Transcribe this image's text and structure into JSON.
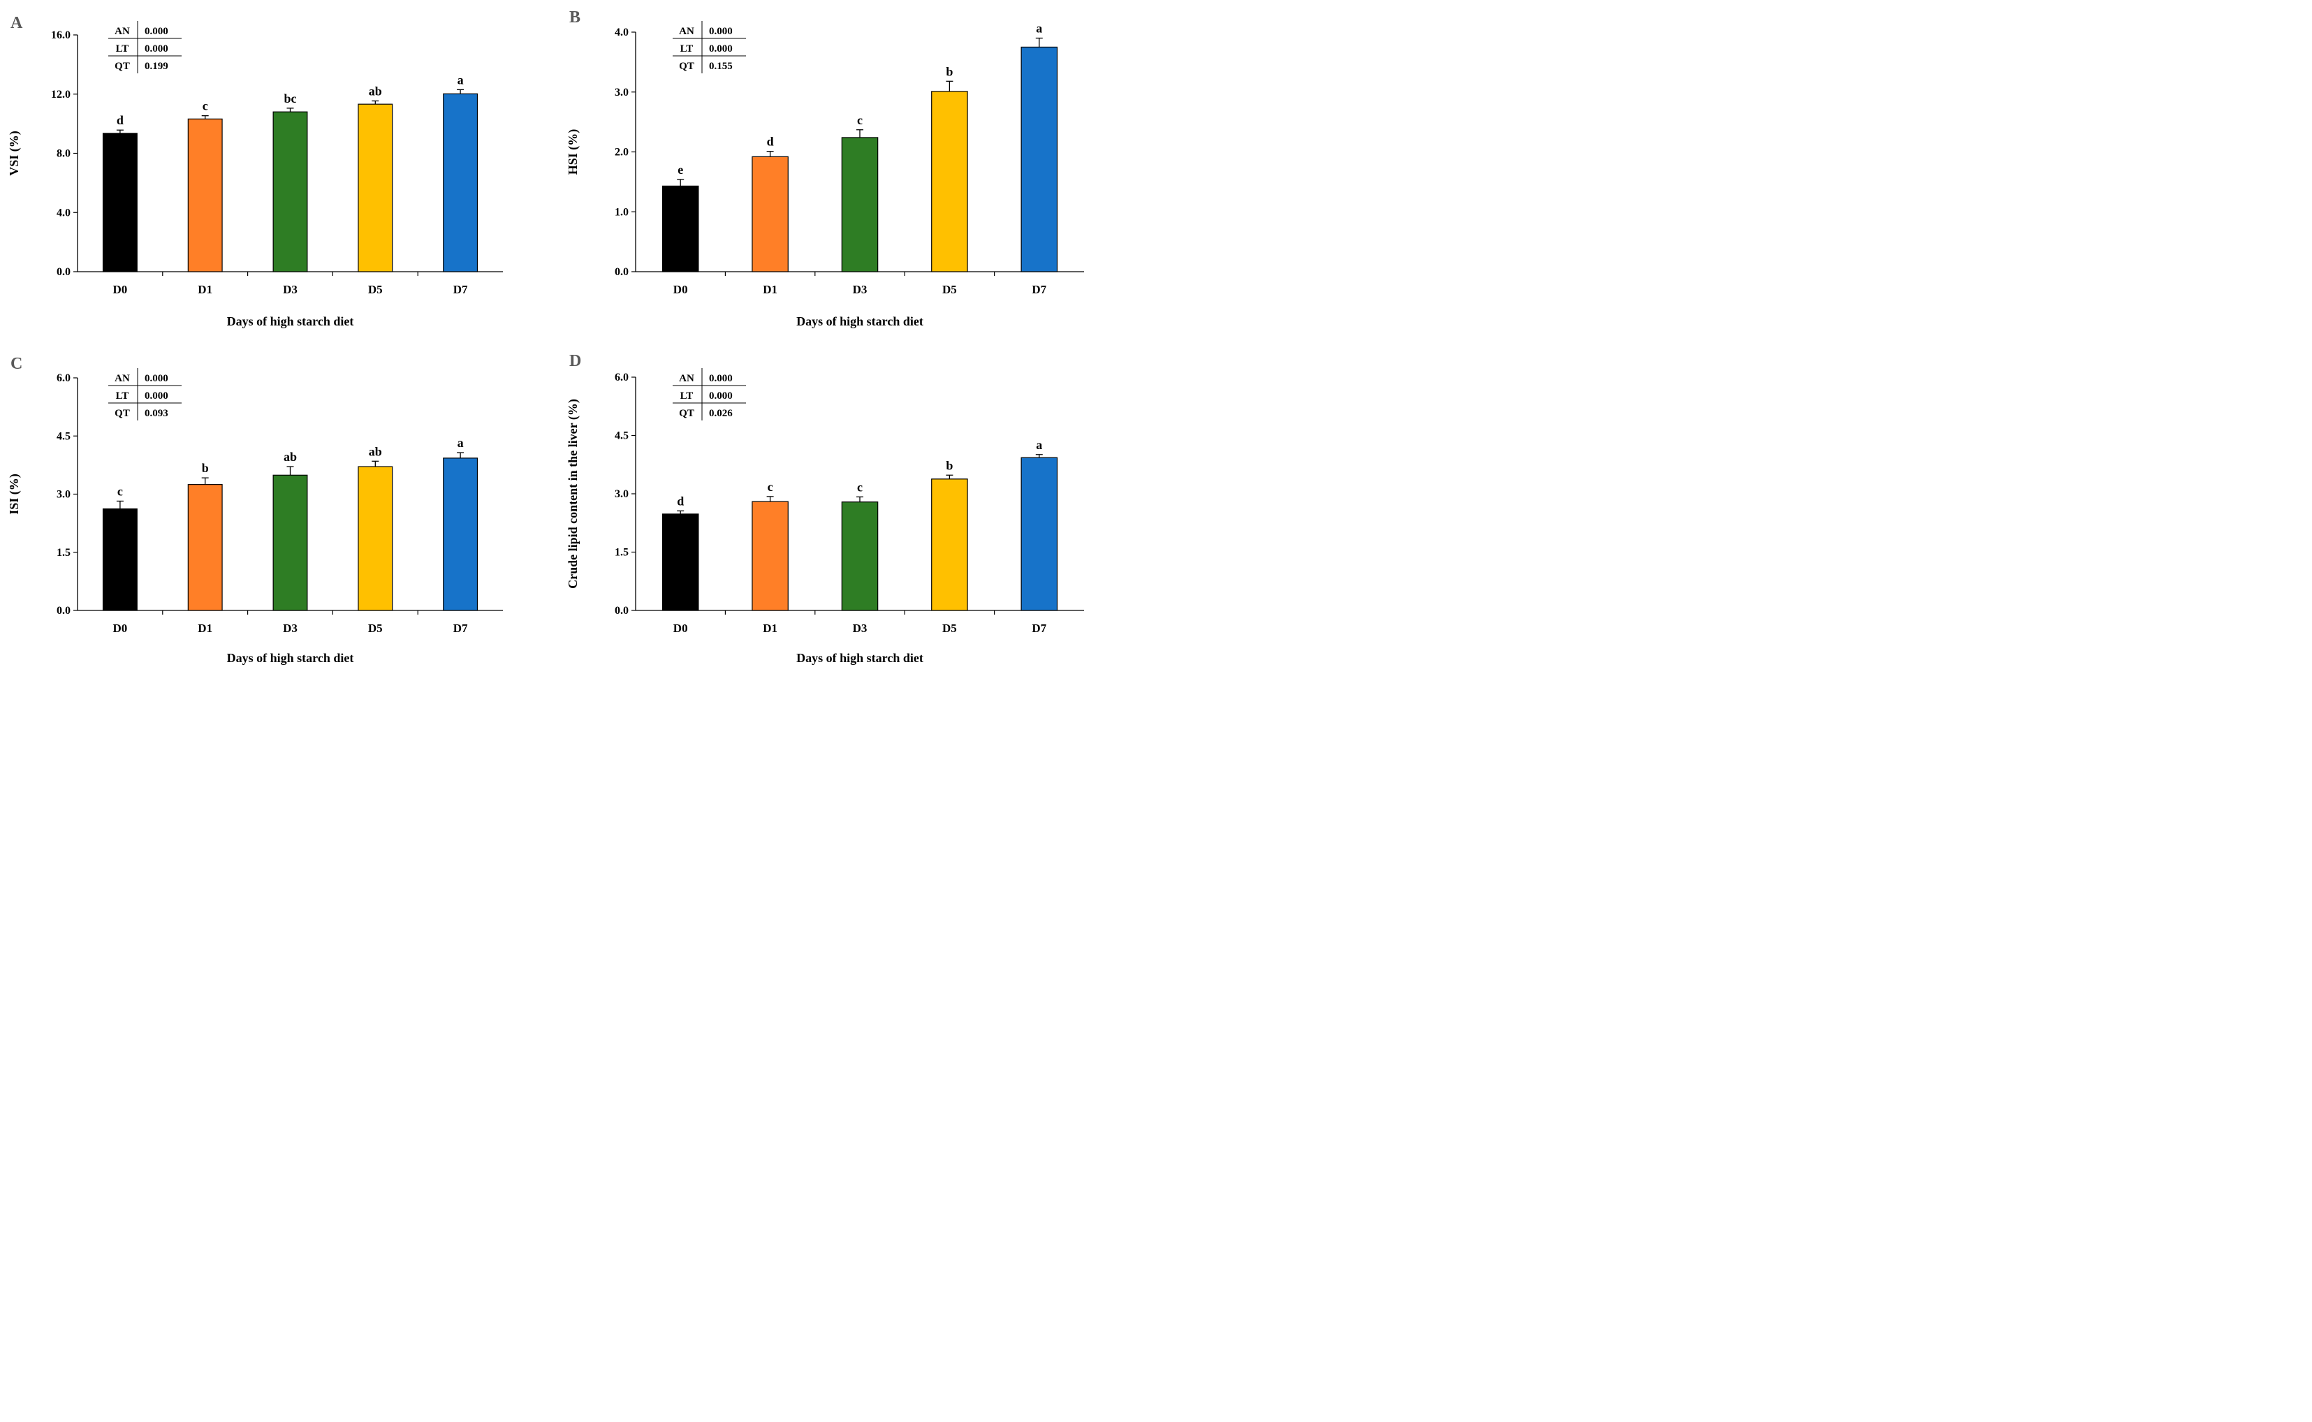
{
  "chart_data": [
    {
      "type": "bar",
      "panel": "A",
      "categories": [
        "D0",
        "D1",
        "D3",
        "D5",
        "D7"
      ],
      "values": [
        9.35,
        10.32,
        10.8,
        11.32,
        12.02
      ],
      "errors": [
        0.22,
        0.22,
        0.25,
        0.22,
        0.28
      ],
      "significance": [
        "d",
        "c",
        "bc",
        "ab",
        "a"
      ],
      "colors": [
        "#000000",
        "#ff7f27",
        "#2e7d24",
        "#ffc000",
        "#1773c9"
      ],
      "title": "",
      "xlabel": "Days of high starch diet",
      "ylabel": "VSI (%)",
      "ylim": [
        0,
        16
      ],
      "yticks": [
        0,
        4,
        8,
        12,
        16
      ],
      "ytick_labels": [
        "0.0",
        "4.0",
        "8.0",
        "12.0",
        "16.0"
      ],
      "grid": false,
      "stats": [
        {
          "label": "AN",
          "value": "0.000"
        },
        {
          "label": "LT",
          "value": "0.000"
        },
        {
          "label": "QT",
          "value": "0.199"
        }
      ]
    },
    {
      "type": "bar",
      "panel": "B",
      "categories": [
        "D0",
        "D1",
        "D3",
        "D5",
        "D7"
      ],
      "values": [
        1.43,
        1.92,
        2.24,
        3.01,
        3.75
      ],
      "errors": [
        0.11,
        0.09,
        0.13,
        0.17,
        0.15
      ],
      "significance": [
        "e",
        "d",
        "c",
        "b",
        "a"
      ],
      "colors": [
        "#000000",
        "#ff7f27",
        "#2e7d24",
        "#ffc000",
        "#1773c9"
      ],
      "title": "",
      "xlabel": "Days of high starch diet",
      "ylabel": "HSI (%)",
      "ylim": [
        0,
        4
      ],
      "yticks": [
        0,
        1,
        2,
        3,
        4
      ],
      "ytick_labels": [
        "0.0",
        "1.0",
        "2.0",
        "3.0",
        "4.0"
      ],
      "grid": false,
      "stats": [
        {
          "label": "AN",
          "value": "0.000"
        },
        {
          "label": "LT",
          "value": "0.000"
        },
        {
          "label": "QT",
          "value": "0.155"
        }
      ]
    },
    {
      "type": "bar",
      "panel": "C",
      "categories": [
        "D0",
        "D1",
        "D3",
        "D5",
        "D7"
      ],
      "values": [
        2.62,
        3.25,
        3.49,
        3.71,
        3.93
      ],
      "errors": [
        0.2,
        0.17,
        0.22,
        0.14,
        0.14
      ],
      "significance": [
        "c",
        "b",
        "ab",
        "ab",
        "a"
      ],
      "colors": [
        "#000000",
        "#ff7f27",
        "#2e7d24",
        "#ffc000",
        "#1773c9"
      ],
      "title": "",
      "xlabel": "Days of high starch diet",
      "ylabel": "ISI (%)",
      "ylim": [
        0,
        6
      ],
      "yticks": [
        0,
        1.5,
        3,
        4.5,
        6
      ],
      "ytick_labels": [
        "0.0",
        "1.5",
        "3.0",
        "4.5",
        "6.0"
      ],
      "grid": false,
      "stats": [
        {
          "label": "AN",
          "value": "0.000"
        },
        {
          "label": "LT",
          "value": "0.000"
        },
        {
          "label": "QT",
          "value": "0.093"
        }
      ]
    },
    {
      "type": "bar",
      "panel": "D",
      "categories": [
        "D0",
        "D1",
        "D3",
        "D5",
        "D7"
      ],
      "values": [
        2.48,
        2.8,
        2.79,
        3.38,
        3.93
      ],
      "errors": [
        0.08,
        0.13,
        0.13,
        0.1,
        0.08
      ],
      "significance": [
        "d",
        "c",
        "c",
        "b",
        "a"
      ],
      "colors": [
        "#000000",
        "#ff7f27",
        "#2e7d24",
        "#ffc000",
        "#1773c9"
      ],
      "title": "",
      "xlabel": "Days of high starch diet",
      "ylabel": "Crude lipid content in the liver (%)",
      "ylim": [
        0,
        6
      ],
      "yticks": [
        0,
        1.5,
        3,
        4.5,
        6
      ],
      "ytick_labels": [
        "0.0",
        "1.5",
        "3.0",
        "4.5",
        "6.0"
      ],
      "grid": false,
      "stats": [
        {
          "label": "AN",
          "value": "0.000"
        },
        {
          "label": "LT",
          "value": "0.000"
        },
        {
          "label": "QT",
          "value": "0.026"
        }
      ]
    }
  ]
}
